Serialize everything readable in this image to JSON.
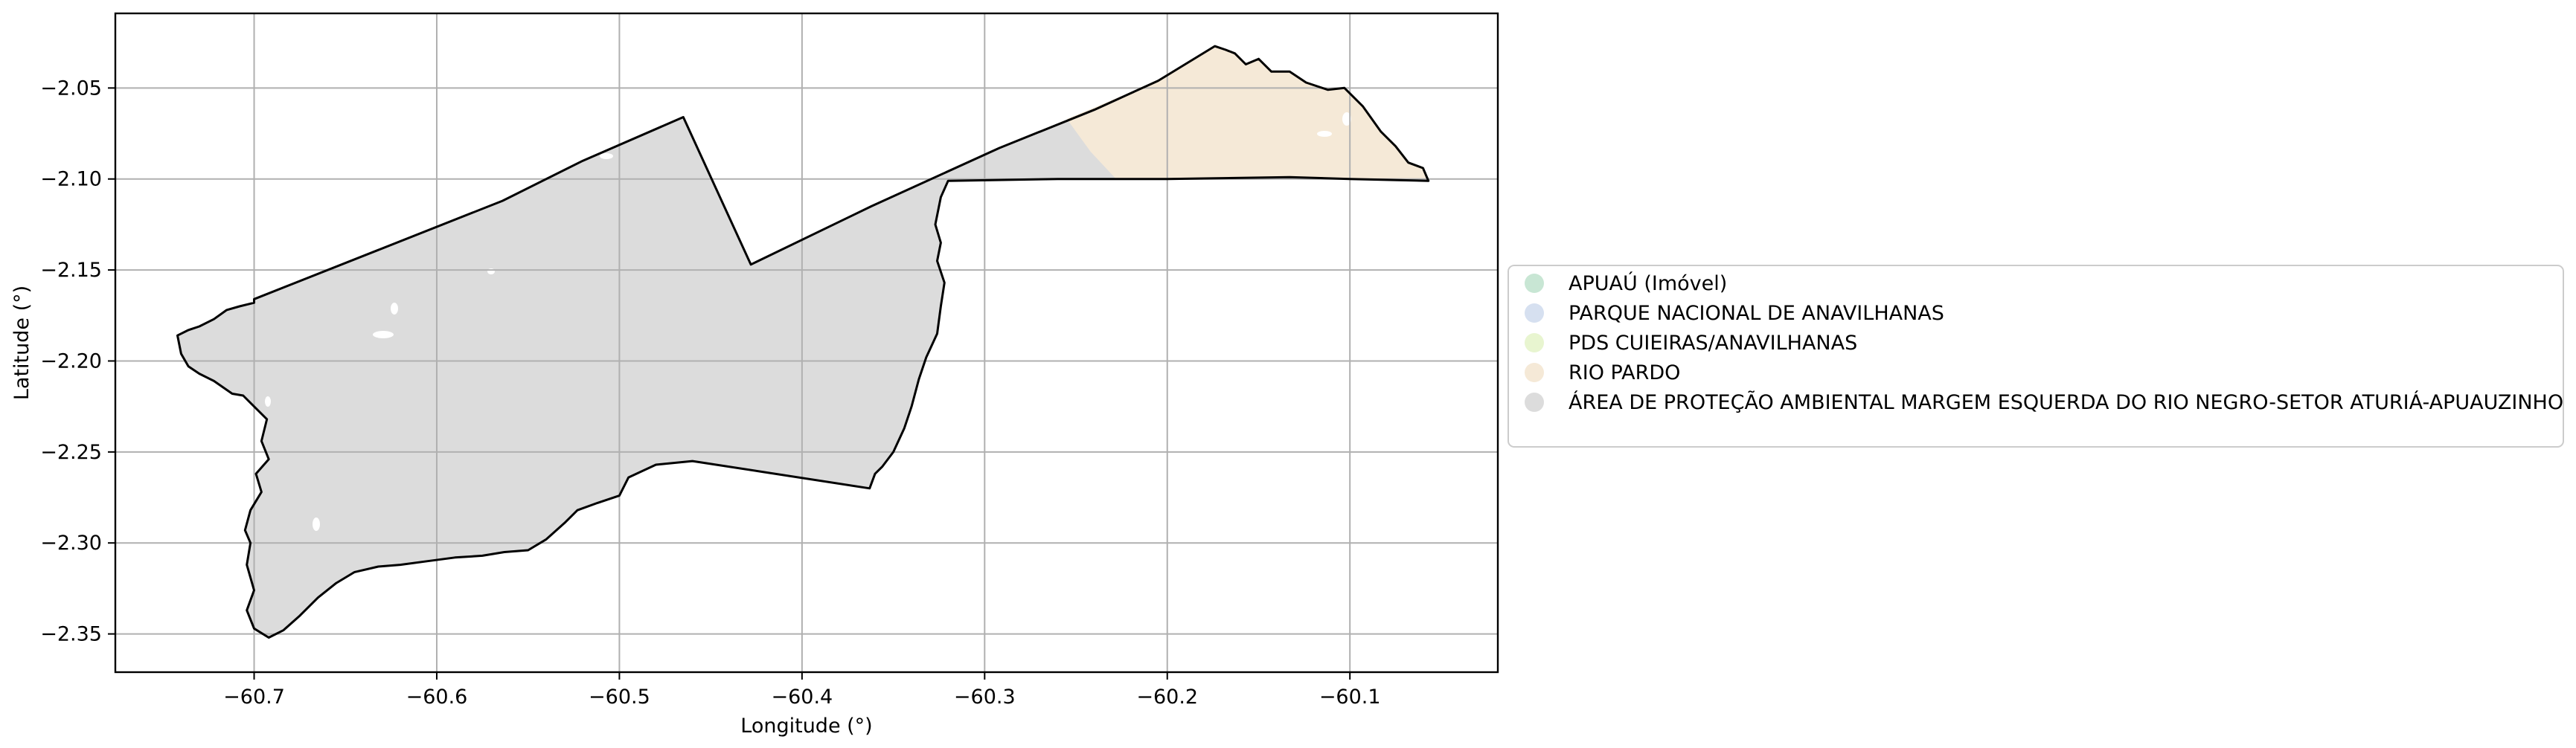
{
  "chart_data": {
    "type": "map",
    "title": "",
    "xlabel": "Longitude (°)",
    "ylabel": "Latitude (°)",
    "xlim": [
      -60.776,
      -60.019
    ],
    "ylim": [
      -2.371,
      -2.009
    ],
    "xticks": [
      -60.7,
      -60.6,
      -60.5,
      -60.4,
      -60.3,
      -60.2,
      -60.1
    ],
    "yticks": [
      -2.05,
      -2.1,
      -2.15,
      -2.2,
      -2.25,
      -2.3,
      -2.35
    ],
    "xtick_labels": [
      "−60.7",
      "−60.6",
      "−60.5",
      "−60.4",
      "−60.3",
      "−60.2",
      "−60.1"
    ],
    "ytick_labels": [
      "−2.05",
      "−2.10",
      "−2.15",
      "−2.20",
      "−2.25",
      "−2.30",
      "−2.35"
    ],
    "grid": true,
    "legend_position": "right",
    "legend": [
      {
        "name": "APUAÚ (Imóvel)",
        "color": "#c8e6d4"
      },
      {
        "name": "PARQUE NACIONAL DE ANAVILHANAS",
        "color": "#d6e0f0"
      },
      {
        "name": "PDS CUIEIRAS/ANAVILHANAS",
        "color": "#e8f5d0"
      },
      {
        "name": "RIO PARDO",
        "color": "#f5e9d7"
      },
      {
        "name": "ÁREA DE PROTEÇÃO AMBIENTAL MARGEM ESQUERDA DO RIO NEGRO-SETOR ATURIÁ-APUAUZINHO",
        "color": "#dcdcdc"
      }
    ],
    "boundary": [
      [
        -60.742,
        -2.186
      ],
      [
        -60.736,
        -2.183
      ],
      [
        -60.73,
        -2.181
      ],
      [
        -60.722,
        -2.177
      ],
      [
        -60.715,
        -2.172
      ],
      [
        -60.708,
        -2.17
      ],
      [
        -60.7,
        -2.168
      ],
      [
        -60.7,
        -2.166
      ],
      [
        -60.632,
        -2.139
      ],
      [
        -60.564,
        -2.112
      ],
      [
        -60.52,
        -2.09
      ],
      [
        -60.465,
        -2.066
      ],
      [
        -60.428,
        -2.147
      ],
      [
        -60.362,
        -2.115
      ],
      [
        -60.292,
        -2.083
      ],
      [
        -60.24,
        -2.062
      ],
      [
        -60.205,
        -2.046
      ],
      [
        -60.174,
        -2.027
      ],
      [
        -60.168,
        -2.029
      ],
      [
        -60.163,
        -2.031
      ],
      [
        -60.157,
        -2.037
      ],
      [
        -60.15,
        -2.034
      ],
      [
        -60.143,
        -2.041
      ],
      [
        -60.133,
        -2.041
      ],
      [
        -60.124,
        -2.047
      ],
      [
        -60.112,
        -2.051
      ],
      [
        -60.103,
        -2.05
      ],
      [
        -60.093,
        -2.06
      ],
      [
        -60.083,
        -2.074
      ],
      [
        -60.075,
        -2.082
      ],
      [
        -60.068,
        -2.091
      ],
      [
        -60.06,
        -2.094
      ],
      [
        -60.057,
        -2.101
      ],
      [
        -60.1,
        -2.1
      ],
      [
        -60.133,
        -2.099
      ],
      [
        -60.2,
        -2.1
      ],
      [
        -60.26,
        -2.1
      ],
      [
        -60.32,
        -2.101
      ],
      [
        -60.324,
        -2.11
      ],
      [
        -60.327,
        -2.125
      ],
      [
        -60.324,
        -2.135
      ],
      [
        -60.326,
        -2.145
      ],
      [
        -60.322,
        -2.157
      ],
      [
        -60.324,
        -2.17
      ],
      [
        -60.326,
        -2.185
      ],
      [
        -60.332,
        -2.198
      ],
      [
        -60.336,
        -2.21
      ],
      [
        -60.34,
        -2.225
      ],
      [
        -60.344,
        -2.237
      ],
      [
        -60.35,
        -2.25
      ],
      [
        -60.356,
        -2.258
      ],
      [
        -60.36,
        -2.262
      ],
      [
        -60.363,
        -2.27
      ],
      [
        -60.46,
        -2.255
      ],
      [
        -60.48,
        -2.257
      ],
      [
        -60.495,
        -2.264
      ],
      [
        -60.5,
        -2.274
      ],
      [
        -60.512,
        -2.278
      ],
      [
        -60.523,
        -2.282
      ],
      [
        -60.53,
        -2.289
      ],
      [
        -60.54,
        -2.298
      ],
      [
        -60.55,
        -2.304
      ],
      [
        -60.563,
        -2.305
      ],
      [
        -60.575,
        -2.307
      ],
      [
        -60.59,
        -2.308
      ],
      [
        -60.605,
        -2.31
      ],
      [
        -60.62,
        -2.312
      ],
      [
        -60.632,
        -2.313
      ],
      [
        -60.645,
        -2.316
      ],
      [
        -60.655,
        -2.322
      ],
      [
        -60.665,
        -2.33
      ],
      [
        -60.675,
        -2.34
      ],
      [
        -60.684,
        -2.348
      ],
      [
        -60.692,
        -2.352
      ],
      [
        -60.7,
        -2.347
      ],
      [
        -60.704,
        -2.337
      ],
      [
        -60.7,
        -2.326
      ],
      [
        -60.704,
        -2.312
      ],
      [
        -60.702,
        -2.3
      ],
      [
        -60.705,
        -2.293
      ],
      [
        -60.702,
        -2.282
      ],
      [
        -60.696,
        -2.272
      ],
      [
        -60.699,
        -2.262
      ],
      [
        -60.692,
        -2.254
      ],
      [
        -60.696,
        -2.244
      ],
      [
        -60.693,
        -2.232
      ],
      [
        -60.702,
        -2.223
      ],
      [
        -60.706,
        -2.219
      ],
      [
        -60.712,
        -2.218
      ],
      [
        -60.722,
        -2.211
      ],
      [
        -60.73,
        -2.207
      ],
      [
        -60.736,
        -2.203
      ],
      [
        -60.74,
        -2.196
      ],
      [
        -60.742,
        -2.186
      ]
    ],
    "rio_pardo_region": [
      [
        -60.255,
        -2.067
      ],
      [
        -60.205,
        -2.046
      ],
      [
        -60.174,
        -2.027
      ],
      [
        -60.168,
        -2.029
      ],
      [
        -60.163,
        -2.031
      ],
      [
        -60.157,
        -2.037
      ],
      [
        -60.15,
        -2.034
      ],
      [
        -60.143,
        -2.041
      ],
      [
        -60.133,
        -2.041
      ],
      [
        -60.124,
        -2.047
      ],
      [
        -60.112,
        -2.051
      ],
      [
        -60.103,
        -2.05
      ],
      [
        -60.093,
        -2.06
      ],
      [
        -60.083,
        -2.074
      ],
      [
        -60.075,
        -2.082
      ],
      [
        -60.068,
        -2.091
      ],
      [
        -60.06,
        -2.094
      ],
      [
        -60.057,
        -2.101
      ],
      [
        -60.1,
        -2.1
      ],
      [
        -60.133,
        -2.099
      ],
      [
        -60.2,
        -2.1
      ],
      [
        -60.228,
        -2.1
      ],
      [
        -60.242,
        -2.085
      ]
    ]
  }
}
